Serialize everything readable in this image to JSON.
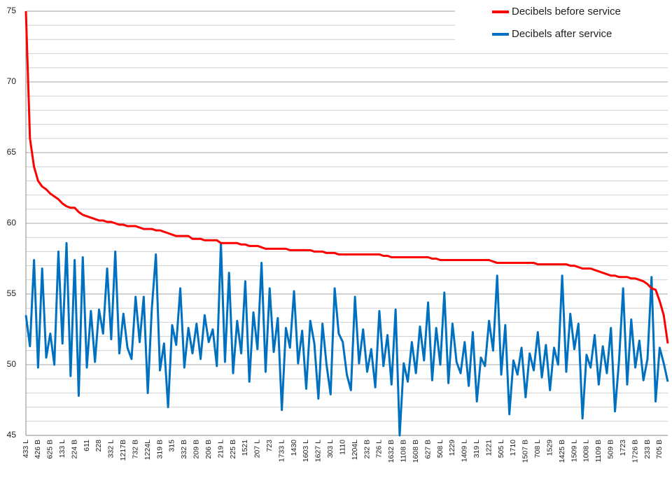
{
  "chart_data": {
    "type": "line",
    "categories": [
      "433 L",
      null,
      null,
      "426 B",
      null,
      null,
      "625 B",
      null,
      null,
      "133 L",
      null,
      null,
      "224 B",
      null,
      null,
      "611",
      null,
      null,
      "228",
      null,
      null,
      "332 L",
      null,
      null,
      "1217B",
      null,
      null,
      "732 B",
      null,
      null,
      "1224L",
      null,
      null,
      "319 B",
      null,
      null,
      "315",
      null,
      null,
      "332 B",
      null,
      null,
      "209 B",
      null,
      null,
      "206 B",
      null,
      null,
      "219 L",
      null,
      null,
      "225 B",
      null,
      null,
      "1521",
      null,
      null,
      "207 L",
      null,
      null,
      "723",
      null,
      null,
      "1733 L",
      null,
      null,
      "1430",
      null,
      null,
      "1603 L",
      null,
      null,
      "1627 L",
      null,
      null,
      "303 L",
      null,
      null,
      "1110",
      null,
      null,
      "1204L",
      null,
      null,
      "232 B",
      null,
      null,
      "726 L",
      null,
      null,
      "1632 B",
      null,
      null,
      "1108 B",
      null,
      null,
      "1608 B",
      null,
      null,
      "627 B",
      null,
      null,
      "508 L",
      null,
      null,
      "1229",
      null,
      null,
      "1409 L",
      null,
      null,
      "319 L",
      null,
      null,
      "1221",
      null,
      null,
      "505 L",
      null,
      null,
      "1710",
      null,
      null,
      "1507 B",
      null,
      null,
      "708 L",
      null,
      null,
      "1529",
      null,
      null,
      "1425 B",
      null,
      null,
      "1509 L",
      null,
      null,
      "1008 L",
      null,
      null,
      "1109 B",
      null,
      null,
      "509 B",
      null,
      null,
      "1723",
      null,
      null,
      "1726 B",
      null,
      null,
      "233 B",
      null,
      null,
      "705 B",
      null,
      null
    ],
    "series": [
      {
        "name": "Decibels before service",
        "color": "#ff0000",
        "values": [
          75,
          66,
          64,
          63,
          62.6,
          62.4,
          62.1,
          61.9,
          61.7,
          61.4,
          61.2,
          61.1,
          61.1,
          60.8,
          60.6,
          60.5,
          60.4,
          60.3,
          60.2,
          60.2,
          60.1,
          60.1,
          60,
          59.9,
          59.9,
          59.8,
          59.8,
          59.8,
          59.7,
          59.6,
          59.6,
          59.6,
          59.5,
          59.5,
          59.4,
          59.3,
          59.2,
          59.1,
          59.1,
          59.1,
          59.1,
          58.9,
          58.9,
          58.9,
          58.8,
          58.8,
          58.8,
          58.8,
          58.6,
          58.6,
          58.6,
          58.6,
          58.6,
          58.5,
          58.5,
          58.4,
          58.4,
          58.4,
          58.3,
          58.2,
          58.2,
          58.2,
          58.2,
          58.2,
          58.2,
          58.1,
          58.1,
          58.1,
          58.1,
          58.1,
          58.1,
          58,
          58,
          58,
          57.9,
          57.9,
          57.9,
          57.8,
          57.8,
          57.8,
          57.8,
          57.8,
          57.8,
          57.8,
          57.8,
          57.8,
          57.8,
          57.8,
          57.7,
          57.7,
          57.6,
          57.6,
          57.6,
          57.6,
          57.6,
          57.6,
          57.6,
          57.6,
          57.6,
          57.6,
          57.5,
          57.5,
          57.4,
          57.4,
          57.4,
          57.4,
          57.4,
          57.4,
          57.4,
          57.4,
          57.4,
          57.4,
          57.4,
          57.4,
          57.4,
          57.3,
          57.2,
          57.2,
          57.2,
          57.2,
          57.2,
          57.2,
          57.2,
          57.2,
          57.2,
          57.2,
          57.1,
          57.1,
          57.1,
          57.1,
          57.1,
          57.1,
          57.1,
          57.1,
          57,
          57,
          56.9,
          56.8,
          56.8,
          56.8,
          56.7,
          56.6,
          56.5,
          56.4,
          56.3,
          56.3,
          56.2,
          56.2,
          56.2,
          56.1,
          56.1,
          56,
          55.9,
          55.7,
          55.4,
          55.3,
          54.5,
          53.5,
          51.5
        ]
      },
      {
        "name": "Decibels after service",
        "color": "#0070c0",
        "values": [
          53.5,
          51.3,
          57.4,
          49.8,
          56.8,
          50.5,
          52.2,
          50,
          58,
          51.5,
          58.6,
          49.2,
          57.4,
          47.8,
          57.6,
          49.8,
          53.8,
          50.2,
          53.9,
          52.2,
          56.8,
          51.8,
          58,
          50.8,
          53.6,
          51.2,
          50.4,
          54.8,
          51.6,
          54.8,
          48,
          54,
          57.8,
          49.6,
          51.5,
          47,
          52.8,
          51.4,
          55.4,
          49.8,
          52.6,
          50.8,
          52.9,
          50.4,
          53.5,
          51.6,
          52.5,
          49.9,
          58.6,
          50.2,
          56.5,
          49.4,
          53.1,
          50.8,
          55.9,
          48.8,
          53.7,
          51.1,
          57.2,
          49.5,
          55.4,
          50.9,
          53.3,
          46.8,
          52.6,
          51.2,
          55.2,
          50.1,
          52.4,
          48.3,
          53.1,
          51.5,
          47.6,
          52.9,
          50,
          47.9,
          55.4,
          52.2,
          51.6,
          49.3,
          48.2,
          54.8,
          50.1,
          52.5,
          49.5,
          51.1,
          48.4,
          53.8,
          49.9,
          52.1,
          48.6,
          53.9,
          45,
          50.1,
          48.8,
          51.6,
          49.4,
          52.7,
          50.3,
          54.4,
          48.9,
          52.6,
          50,
          55.1,
          48.7,
          52.9,
          50.2,
          49.4,
          51.6,
          48.5,
          52.3,
          47.4,
          50.5,
          49.9,
          53.1,
          51,
          56.3,
          49.3,
          52.8,
          46.5,
          50.3,
          49.3,
          51.2,
          47.7,
          50.8,
          49.6,
          52.3,
          49.1,
          51.4,
          48.2,
          51.2,
          50,
          56.3,
          49.5,
          53.6,
          51.1,
          52.9,
          46.2,
          50.7,
          49.8,
          52.1,
          48.6,
          51.3,
          49.4,
          52.6,
          46.7,
          50.3,
          55.4,
          48.6,
          53.2,
          49.8,
          51.7,
          48.9,
          50.4,
          56.2,
          47.4,
          51.2,
          50.1,
          48.8
        ]
      }
    ],
    "ylim": [
      45,
      75
    ],
    "yticks": [
      45,
      50,
      55,
      60,
      65,
      70,
      75
    ],
    "minor_yticks": [
      46,
      47,
      48,
      49,
      51,
      52,
      53,
      54,
      56,
      57,
      58,
      59,
      61,
      62,
      63,
      64,
      66,
      67,
      68,
      69,
      71,
      72,
      73,
      74
    ],
    "grid": true,
    "legend": "top-right"
  }
}
